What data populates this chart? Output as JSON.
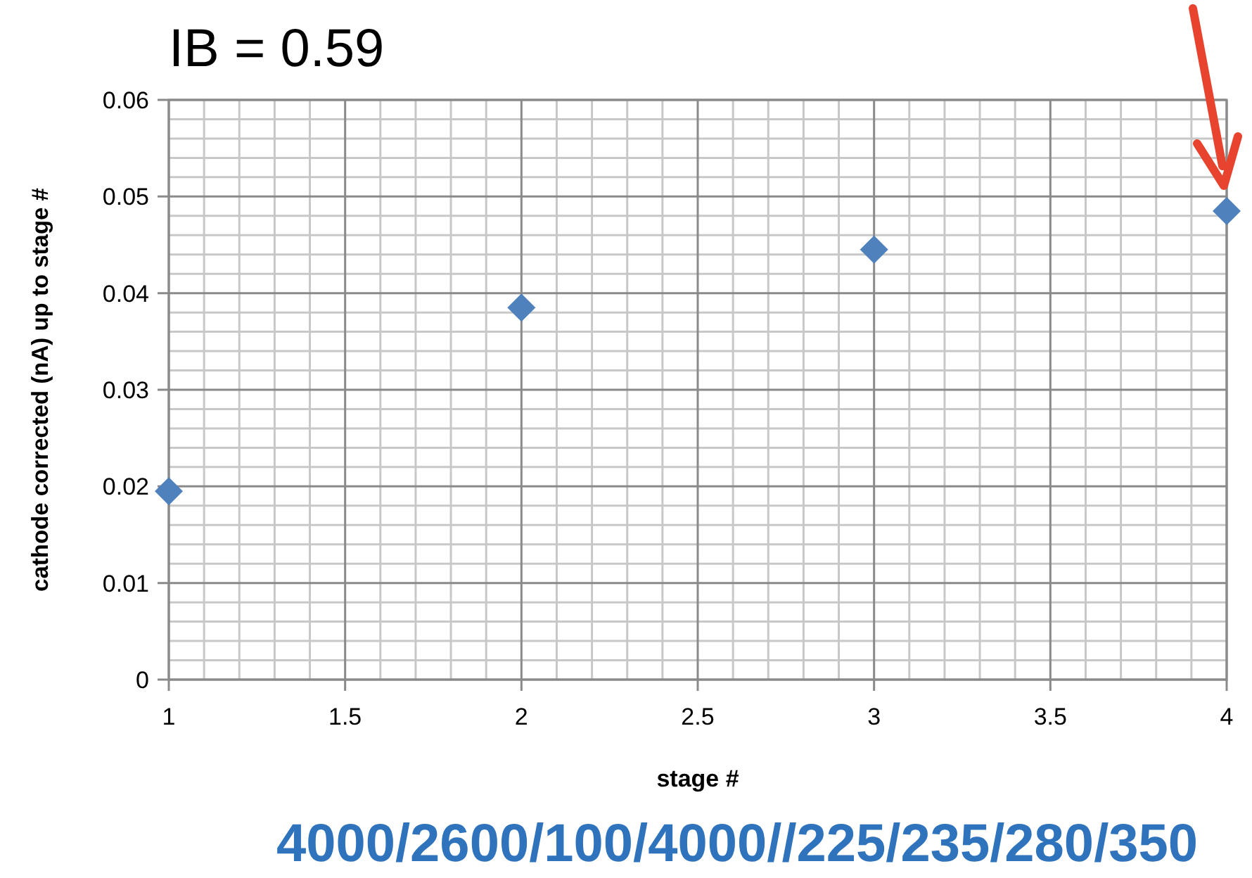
{
  "chart_data": {
    "type": "scatter",
    "title": "IB = 0.59",
    "xlabel": "stage #",
    "ylabel": "cathode corrected (nA) up to stage #",
    "x": [
      1,
      2,
      3,
      4
    ],
    "series": [
      {
        "color": "#4f81bd",
        "values": [
          0.0195,
          0.0385,
          0.0445,
          0.0485
        ]
      }
    ],
    "xlim": [
      1,
      4
    ],
    "xticks": [
      1,
      1.5,
      2,
      2.5,
      3,
      3.5,
      4
    ],
    "ylim": [
      0,
      0.06
    ],
    "yticks": [
      0,
      0.01,
      0.02,
      0.03,
      0.04,
      0.05,
      0.06
    ],
    "grid": true,
    "marker": "diamond",
    "annotations": [
      "4000/2600/100/4000//225/235/280/350"
    ]
  }
}
